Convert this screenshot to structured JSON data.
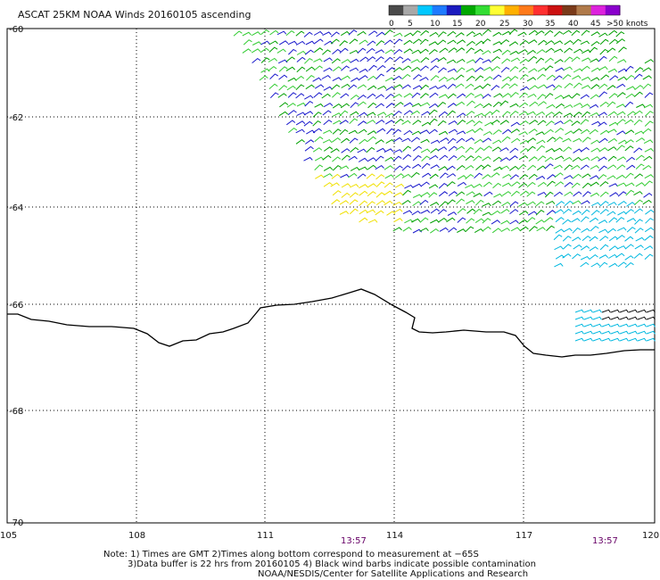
{
  "title": "ASCAT 25KM NOAA Winds 20160105 ascending",
  "legend": {
    "colors": [
      "#4a4a4a",
      "#a8a8a8",
      "#00c8ff",
      "#1f7bff",
      "#1b1bbf",
      "#00a800",
      "#33dd33",
      "#ffff33",
      "#ffb000",
      "#ff7a1a",
      "#ff3030",
      "#cc1111",
      "#7a3a1a",
      "#b07a4a",
      "#dd22dd",
      "#8a00cc"
    ],
    "labels": [
      "0",
      "5",
      "10",
      "15",
      "20",
      "25",
      "30",
      "35",
      "40",
      "45",
      ">50 knots"
    ]
  },
  "axes": {
    "lat_labels": [
      "-60",
      "-62",
      "-64",
      "-66",
      "-68",
      "-70"
    ],
    "lon_labels": [
      "105",
      "108",
      "111",
      "114",
      "117",
      "120"
    ]
  },
  "times": [
    "13:57",
    "13:57"
  ],
  "notes": [
    "Note: 1) Times are GMT 2)Times along bottom correspond to measurement at −65S",
    "3)Data buffer is 22 hrs from 20160105 4) Black wind barbs indicate possible contamination",
    "NOAA/NESDIS/Center for Satellite Applications and Research"
  ],
  "wind_colors": {
    "light_green": "#33cc33",
    "green": "#00a000",
    "blue": "#1a1acc",
    "yellow": "#f0e000",
    "cyan": "#00b8e0",
    "black": "#111111"
  }
}
